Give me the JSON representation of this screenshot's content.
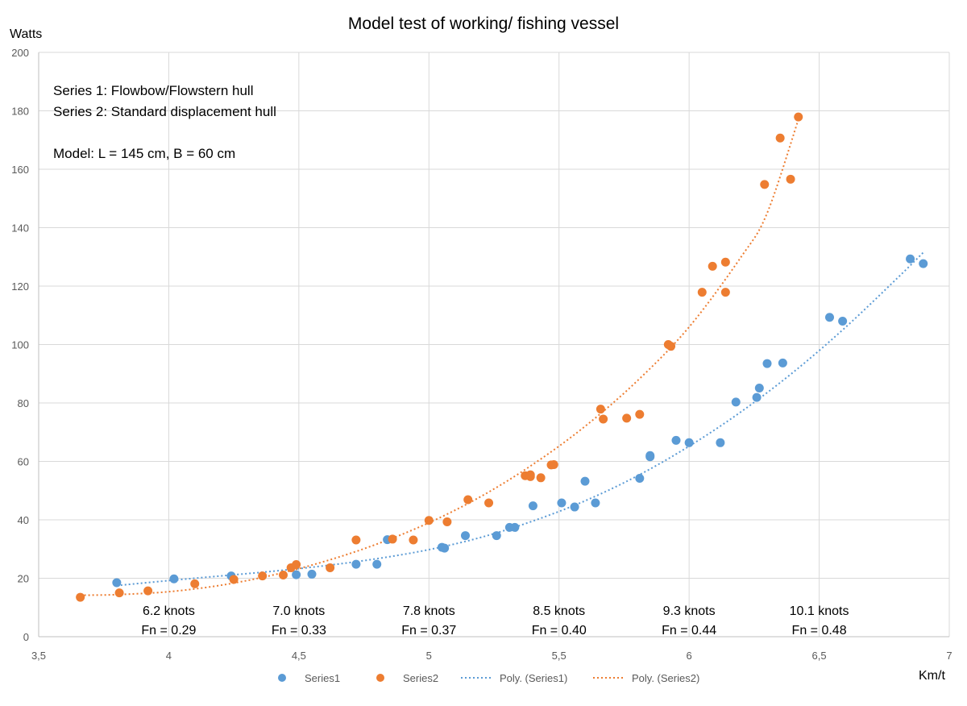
{
  "chart_data": {
    "type": "scatter",
    "title": "Model test of working/ fishing vessel",
    "ylabel": "Watts",
    "xlabel": "Km/t",
    "xlim": [
      3.5,
      7
    ],
    "ylim": [
      0,
      200
    ],
    "x_ticks": [
      3.5,
      4,
      4.5,
      5,
      5.5,
      6,
      6.5,
      7
    ],
    "x_tick_labels": [
      "3,5",
      "4",
      "4,5",
      "5",
      "5,5",
      "6",
      "6,5",
      "7"
    ],
    "y_ticks": [
      0,
      20,
      40,
      60,
      80,
      100,
      120,
      140,
      160,
      180,
      200
    ],
    "y_tick_labels": [
      "0",
      "20",
      "40",
      "60",
      "80",
      "100",
      "120",
      "140",
      "160",
      "180",
      "200"
    ],
    "grid": "vertical and horizontal gridlines",
    "legend_position": "bottom",
    "legend": [
      "Series1",
      "Series2",
      "Poly. (Series1)",
      "Poly. (Series2)"
    ],
    "annotations_topleft": [
      "Series 1: Flowbow/Flowstern hull",
      "Series 2: Standard displacement hull",
      "Model: L = 145 cm, B = 60 cm"
    ],
    "speed_labels": [
      {
        "x": 4,
        "knots": "6.2 knots",
        "fn": "Fn = 0.29"
      },
      {
        "x": 4.5,
        "knots": "7.0 knots",
        "fn": "Fn = 0.33"
      },
      {
        "x": 5,
        "knots": "7.8 knots",
        "fn": "Fn = 0.37"
      },
      {
        "x": 5.5,
        "knots": "8.5 knots",
        "fn": "Fn = 0.40"
      },
      {
        "x": 6,
        "knots": "9.3 knots",
        "fn": "Fn = 0.44"
      },
      {
        "x": 6.5,
        "knots": "10.1 knots",
        "fn": "Fn = 0.48"
      }
    ],
    "series": [
      {
        "name": "Series1",
        "color": "#5b9bd5",
        "points": [
          [
            3.8,
            18.5
          ],
          [
            4.02,
            19.8
          ],
          [
            4.24,
            20.8
          ],
          [
            4.49,
            21.2
          ],
          [
            4.55,
            21.4
          ],
          [
            4.72,
            24.8
          ],
          [
            4.8,
            24.8
          ],
          [
            4.84,
            33.2
          ],
          [
            5.05,
            30.6
          ],
          [
            5.06,
            30.3
          ],
          [
            5.14,
            34.6
          ],
          [
            5.26,
            34.6
          ],
          [
            5.31,
            37.4
          ],
          [
            5.33,
            37.4
          ],
          [
            5.4,
            44.8
          ],
          [
            5.51,
            45.8
          ],
          [
            5.56,
            44.4
          ],
          [
            5.6,
            53.2
          ],
          [
            5.64,
            45.8
          ],
          [
            5.81,
            54.2
          ],
          [
            5.85,
            61.6
          ],
          [
            5.85,
            62.0
          ],
          [
            5.95,
            67.2
          ],
          [
            6.0,
            66.4
          ],
          [
            6.12,
            66.4
          ],
          [
            6.18,
            80.3
          ],
          [
            6.26,
            81.9
          ],
          [
            6.27,
            85.1
          ],
          [
            6.3,
            93.5
          ],
          [
            6.36,
            93.7
          ],
          [
            6.54,
            109.3
          ],
          [
            6.59,
            108.0
          ],
          [
            6.85,
            129.3
          ],
          [
            6.9,
            127.7
          ]
        ],
        "trend_points": [
          [
            3.8,
            17.5
          ],
          [
            4.0,
            19.2
          ],
          [
            4.2,
            20.8
          ],
          [
            4.4,
            22.4
          ],
          [
            4.6,
            24.3
          ],
          [
            4.8,
            26.7
          ],
          [
            5.0,
            29.8
          ],
          [
            5.2,
            34.0
          ],
          [
            5.4,
            39.6
          ],
          [
            5.6,
            46.5
          ],
          [
            5.8,
            55.0
          ],
          [
            6.0,
            65.2
          ],
          [
            6.2,
            77.0
          ],
          [
            6.4,
            90.5
          ],
          [
            6.6,
            105.8
          ],
          [
            6.8,
            122.7
          ],
          [
            6.9,
            131.5
          ]
        ]
      },
      {
        "name": "Series2",
        "color": "#ed7d31",
        "points": [
          [
            3.66,
            13.5
          ],
          [
            3.81,
            15.0
          ],
          [
            3.92,
            15.7
          ],
          [
            4.1,
            18.1
          ],
          [
            4.25,
            19.6
          ],
          [
            4.36,
            20.8
          ],
          [
            4.44,
            21.1
          ],
          [
            4.47,
            23.6
          ],
          [
            4.49,
            24.7
          ],
          [
            4.62,
            23.6
          ],
          [
            4.72,
            33.1
          ],
          [
            4.86,
            33.4
          ],
          [
            4.94,
            33.1
          ],
          [
            5.0,
            39.8
          ],
          [
            5.07,
            39.3
          ],
          [
            5.15,
            46.9
          ],
          [
            5.23,
            45.8
          ],
          [
            5.37,
            55.1
          ],
          [
            5.39,
            55.4
          ],
          [
            5.39,
            54.8
          ],
          [
            5.43,
            54.4
          ],
          [
            5.47,
            58.8
          ],
          [
            5.48,
            58.9
          ],
          [
            5.66,
            77.9
          ],
          [
            5.67,
            74.5
          ],
          [
            5.76,
            74.8
          ],
          [
            5.81,
            76.1
          ],
          [
            5.92,
            100.0
          ],
          [
            5.93,
            99.4
          ],
          [
            6.05,
            117.9
          ],
          [
            6.09,
            126.8
          ],
          [
            6.14,
            128.2
          ],
          [
            6.14,
            117.9
          ],
          [
            6.29,
            154.8
          ],
          [
            6.35,
            170.7
          ],
          [
            6.39,
            156.6
          ],
          [
            6.42,
            177.9
          ]
        ],
        "trend_points": [
          [
            3.66,
            14.2
          ],
          [
            3.8,
            14.4
          ],
          [
            4.0,
            15.4
          ],
          [
            4.2,
            17.6
          ],
          [
            4.4,
            21.1
          ],
          [
            4.6,
            25.8
          ],
          [
            4.8,
            31.7
          ],
          [
            5.0,
            39.0
          ],
          [
            5.2,
            48.0
          ],
          [
            5.4,
            59.0
          ],
          [
            5.6,
            72.0
          ],
          [
            5.8,
            87.5
          ],
          [
            6.0,
            106.0
          ],
          [
            6.2,
            130.0
          ],
          [
            6.3,
            145.0
          ],
          [
            6.42,
            177.0
          ]
        ]
      }
    ]
  }
}
